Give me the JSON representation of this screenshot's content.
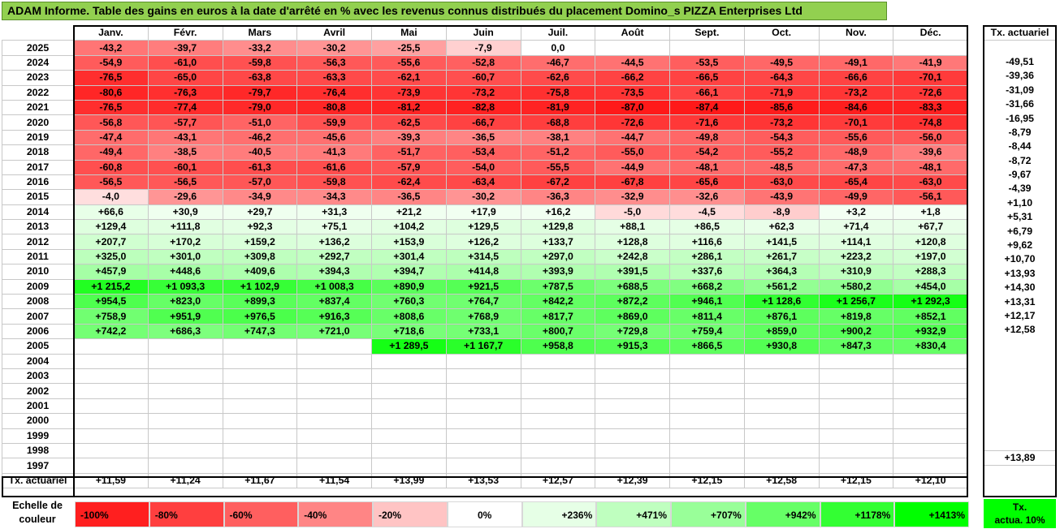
{
  "title": "ADAM Informe. Table des gains en euros à la date d'arrêté en % avec les revenus connus distribués du placement Domino_s PIZZA Enterprises Ltd",
  "months": [
    "Janv.",
    "Févr.",
    "Mars",
    "Avril",
    "Mai",
    "Juin",
    "Juil.",
    "Août",
    "Sept.",
    "Oct.",
    "Nov.",
    "Déc."
  ],
  "act_header": "Tx. actuariel",
  "rows": [
    {
      "year": "2025",
      "cells": [
        "-43,2",
        "-39,7",
        "-33,2",
        "-30,2",
        "-25,5",
        "-7,9",
        "0,0",
        "",
        "",
        "",
        "",
        ""
      ],
      "act": ""
    },
    {
      "year": "2024",
      "cells": [
        "-54,9",
        "-61,0",
        "-59,8",
        "-56,3",
        "-55,6",
        "-52,8",
        "-46,7",
        "-44,5",
        "-53,5",
        "-49,5",
        "-49,1",
        "-41,9"
      ],
      "act": "-49,51"
    },
    {
      "year": "2023",
      "cells": [
        "-76,5",
        "-65,0",
        "-63,8",
        "-63,3",
        "-62,1",
        "-60,7",
        "-62,6",
        "-66,2",
        "-66,5",
        "-64,3",
        "-66,6",
        "-70,1"
      ],
      "act": "-39,36"
    },
    {
      "year": "2022",
      "cells": [
        "-80,6",
        "-76,3",
        "-79,7",
        "-76,4",
        "-73,9",
        "-73,2",
        "-75,8",
        "-73,5",
        "-66,1",
        "-71,9",
        "-73,2",
        "-72,6"
      ],
      "act": "-31,09"
    },
    {
      "year": "2021",
      "cells": [
        "-76,5",
        "-77,4",
        "-79,0",
        "-80,8",
        "-81,2",
        "-82,8",
        "-81,9",
        "-87,0",
        "-87,4",
        "-85,6",
        "-84,6",
        "-83,3"
      ],
      "act": "-31,66"
    },
    {
      "year": "2020",
      "cells": [
        "-56,8",
        "-57,7",
        "-51,0",
        "-59,9",
        "-62,5",
        "-66,7",
        "-68,8",
        "-72,6",
        "-71,6",
        "-73,2",
        "-70,1",
        "-74,8"
      ],
      "act": "-16,95"
    },
    {
      "year": "2019",
      "cells": [
        "-47,4",
        "-43,1",
        "-46,2",
        "-45,6",
        "-39,3",
        "-36,5",
        "-38,1",
        "-44,7",
        "-49,8",
        "-54,3",
        "-55,6",
        "-56,0"
      ],
      "act": "-8,79"
    },
    {
      "year": "2018",
      "cells": [
        "-49,4",
        "-38,5",
        "-40,5",
        "-41,3",
        "-51,7",
        "-53,4",
        "-51,2",
        "-55,0",
        "-54,2",
        "-55,2",
        "-48,9",
        "-39,6"
      ],
      "act": "-8,44"
    },
    {
      "year": "2017",
      "cells": [
        "-60,8",
        "-60,1",
        "-61,3",
        "-61,6",
        "-57,9",
        "-54,0",
        "-55,5",
        "-44,9",
        "-48,1",
        "-48,5",
        "-47,3",
        "-48,1"
      ],
      "act": "-8,72"
    },
    {
      "year": "2016",
      "cells": [
        "-56,5",
        "-56,5",
        "-57,0",
        "-59,8",
        "-62,4",
        "-63,4",
        "-67,2",
        "-67,8",
        "-65,6",
        "-63,0",
        "-65,4",
        "-63,0"
      ],
      "act": "-9,67"
    },
    {
      "year": "2015",
      "cells": [
        "-4,0",
        "-29,6",
        "-34,9",
        "-34,3",
        "-36,5",
        "-30,2",
        "-36,3",
        "-32,9",
        "-32,6",
        "-43,9",
        "-49,9",
        "-56,1"
      ],
      "act": "-4,39"
    },
    {
      "year": "2014",
      "cells": [
        "+66,6",
        "+30,9",
        "+29,7",
        "+31,3",
        "+21,2",
        "+17,9",
        "+16,2",
        "-5,0",
        "-4,5",
        "-8,9",
        "+3,2",
        "+1,8"
      ],
      "act": "+1,10"
    },
    {
      "year": "2013",
      "cells": [
        "+129,4",
        "+111,8",
        "+92,3",
        "+75,1",
        "+104,2",
        "+129,5",
        "+129,8",
        "+88,1",
        "+86,5",
        "+62,3",
        "+71,4",
        "+67,7"
      ],
      "act": "+5,31"
    },
    {
      "year": "2012",
      "cells": [
        "+207,7",
        "+170,2",
        "+159,2",
        "+136,2",
        "+153,9",
        "+126,2",
        "+133,7",
        "+128,8",
        "+116,6",
        "+141,5",
        "+114,1",
        "+120,8"
      ],
      "act": "+6,79"
    },
    {
      "year": "2011",
      "cells": [
        "+325,0",
        "+301,0",
        "+309,8",
        "+292,7",
        "+301,4",
        "+314,5",
        "+297,0",
        "+242,8",
        "+286,1",
        "+261,7",
        "+223,2",
        "+197,0"
      ],
      "act": "+9,62"
    },
    {
      "year": "2010",
      "cells": [
        "+457,9",
        "+448,6",
        "+409,6",
        "+394,3",
        "+394,7",
        "+414,8",
        "+393,9",
        "+391,5",
        "+337,6",
        "+364,3",
        "+310,9",
        "+288,3"
      ],
      "act": "+10,70"
    },
    {
      "year": "2009",
      "cells": [
        "+1 215,2",
        "+1 093,3",
        "+1 102,9",
        "+1 008,3",
        "+890,9",
        "+921,5",
        "+787,5",
        "+688,5",
        "+668,2",
        "+561,2",
        "+580,2",
        "+454,0"
      ],
      "act": "+13,93"
    },
    {
      "year": "2008",
      "cells": [
        "+954,5",
        "+823,0",
        "+899,3",
        "+837,4",
        "+760,3",
        "+764,7",
        "+842,2",
        "+872,2",
        "+946,1",
        "+1 128,6",
        "+1 256,7",
        "+1 292,3"
      ],
      "act": "+14,30"
    },
    {
      "year": "2007",
      "cells": [
        "+758,9",
        "+951,9",
        "+976,5",
        "+916,3",
        "+808,6",
        "+768,9",
        "+817,7",
        "+869,0",
        "+811,4",
        "+876,1",
        "+819,8",
        "+852,1"
      ],
      "act": "+13,31"
    },
    {
      "year": "2006",
      "cells": [
        "+742,2",
        "+686,3",
        "+747,3",
        "+721,0",
        "+718,6",
        "+733,1",
        "+800,7",
        "+729,8",
        "+759,4",
        "+859,0",
        "+900,2",
        "+932,9"
      ],
      "act": "+12,17"
    },
    {
      "year": "2005",
      "cells": [
        "",
        "",
        "",
        "",
        "+1 289,5",
        "+1 167,7",
        "+958,8",
        "+915,3",
        "+866,5",
        "+930,8",
        "+847,3",
        "+830,4"
      ],
      "act": "+12,58"
    },
    {
      "year": "2004",
      "cells": [
        "",
        "",
        "",
        "",
        "",
        "",
        "",
        "",
        "",
        "",
        "",
        ""
      ],
      "act": ""
    },
    {
      "year": "2003",
      "cells": [
        "",
        "",
        "",
        "",
        "",
        "",
        "",
        "",
        "",
        "",
        "",
        ""
      ],
      "act": ""
    },
    {
      "year": "2002",
      "cells": [
        "",
        "",
        "",
        "",
        "",
        "",
        "",
        "",
        "",
        "",
        "",
        ""
      ],
      "act": ""
    },
    {
      "year": "2001",
      "cells": [
        "",
        "",
        "",
        "",
        "",
        "",
        "",
        "",
        "",
        "",
        "",
        ""
      ],
      "act": ""
    },
    {
      "year": "2000",
      "cells": [
        "",
        "",
        "",
        "",
        "",
        "",
        "",
        "",
        "",
        "",
        "",
        ""
      ],
      "act": ""
    },
    {
      "year": "1999",
      "cells": [
        "",
        "",
        "",
        "",
        "",
        "",
        "",
        "",
        "",
        "",
        "",
        ""
      ],
      "act": ""
    },
    {
      "year": "1998",
      "cells": [
        "",
        "",
        "",
        "",
        "",
        "",
        "",
        "",
        "",
        "",
        "",
        ""
      ],
      "act": ""
    },
    {
      "year": "1997",
      "cells": [
        "",
        "",
        "",
        "",
        "",
        "",
        "",
        "",
        "",
        "",
        "",
        ""
      ],
      "act": ""
    }
  ],
  "footer": {
    "label": "Tx. actuariel",
    "values": [
      "+11,59",
      "+11,24",
      "+11,67",
      "+11,54",
      "+13,99",
      "+13,53",
      "+12,57",
      "+12,39",
      "+12,15",
      "+12,58",
      "+12,15",
      "+12,10"
    ],
    "act": "+13,89"
  },
  "legend": {
    "label_line1": "Echelle de",
    "label_line2": "couleur",
    "items": [
      {
        "text": "-100%",
        "color": "#ff1f1f"
      },
      {
        "text": "-80%",
        "color": "#ff3f3f"
      },
      {
        "text": "-60%",
        "color": "#ff5f5f"
      },
      {
        "text": "-40%",
        "color": "#ff8585"
      },
      {
        "text": "-20%",
        "color": "#ffc4c4"
      },
      {
        "text": "0%",
        "color": "#ffffff"
      },
      {
        "text": "+236%",
        "color": "#e6ffe6"
      },
      {
        "text": "+471%",
        "color": "#bfffbf"
      },
      {
        "text": "+707%",
        "color": "#99ff99"
      },
      {
        "text": "+942%",
        "color": "#66ff66"
      },
      {
        "text": "+1178%",
        "color": "#33ff33"
      },
      {
        "text": "+1413%",
        "color": "#00ff00"
      }
    ],
    "act_line1": "Tx.",
    "act_line2": "actua. 10%",
    "act_color": "#00ff00"
  }
}
